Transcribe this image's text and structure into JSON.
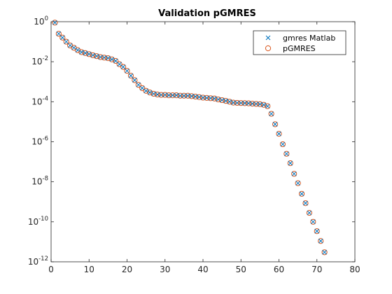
{
  "chart_data": {
    "type": "scatter",
    "title": "Validation pGMRES",
    "xlabel": "",
    "ylabel": "",
    "xlim": [
      0,
      80
    ],
    "ylim": [
      1e-12,
      1
    ],
    "yscale": "log",
    "grid": false,
    "legend_position": "top-right",
    "x_ticks": [
      "0",
      "10",
      "20",
      "30",
      "40",
      "50",
      "60",
      "70",
      "80"
    ],
    "y_ticks": [
      {
        "base": "10",
        "exp": "0"
      },
      {
        "base": "10",
        "exp": "-2"
      },
      {
        "base": "10",
        "exp": "-4"
      },
      {
        "base": "10",
        "exp": "-6"
      },
      {
        "base": "10",
        "exp": "-8"
      },
      {
        "base": "10",
        "exp": "-10"
      },
      {
        "base": "10",
        "exp": "-12"
      }
    ],
    "x": [
      1,
      2,
      3,
      4,
      5,
      6,
      7,
      8,
      9,
      10,
      11,
      12,
      13,
      14,
      15,
      16,
      17,
      18,
      19,
      20,
      21,
      22,
      23,
      24,
      25,
      26,
      27,
      28,
      29,
      30,
      31,
      32,
      33,
      34,
      35,
      36,
      37,
      38,
      39,
      40,
      41,
      42,
      43,
      44,
      45,
      46,
      47,
      48,
      49,
      50,
      51,
      52,
      53,
      54,
      55,
      56,
      57,
      58,
      59,
      60,
      61,
      62,
      63,
      64,
      65,
      66,
      67,
      68,
      69,
      70,
      71,
      72
    ],
    "y": [
      0.9,
      0.25,
      0.16,
      0.1,
      0.065,
      0.05,
      0.038,
      0.03,
      0.027,
      0.024,
      0.021,
      0.019,
      0.017,
      0.016,
      0.015,
      0.013,
      0.011,
      0.0075,
      0.0055,
      0.0035,
      0.002,
      0.0012,
      0.0007,
      0.00048,
      0.00035,
      0.00029,
      0.00025,
      0.00023,
      0.00022,
      0.00022,
      0.00021,
      0.00021,
      0.00021,
      0.0002,
      0.0002,
      0.0002,
      0.00019,
      0.00018,
      0.00017,
      0.00016,
      0.000155,
      0.00015,
      0.000145,
      0.00013,
      0.00012,
      0.00011,
      0.0001,
      9e-05,
      8.8e-05,
      8.6e-05,
      8.5e-05,
      8.3e-05,
      8e-05,
      7.8e-05,
      7.5e-05,
      7e-05,
      6e-05,
      2.5e-05,
      7.5e-06,
      2.5e-06,
      7.5e-07,
      2.5e-07,
      8.5e-08,
      2.5e-08,
      8.5e-09,
      2.5e-09,
      8.5e-10,
      2.8e-10,
      1e-10,
      3.4e-11,
      1.1e-11,
      3e-12
    ],
    "series": [
      {
        "name": "gmres Matlab",
        "marker": "x",
        "color": "#0072BD"
      },
      {
        "name": "pGMRES",
        "marker": "o",
        "color": "#D95319"
      }
    ]
  }
}
